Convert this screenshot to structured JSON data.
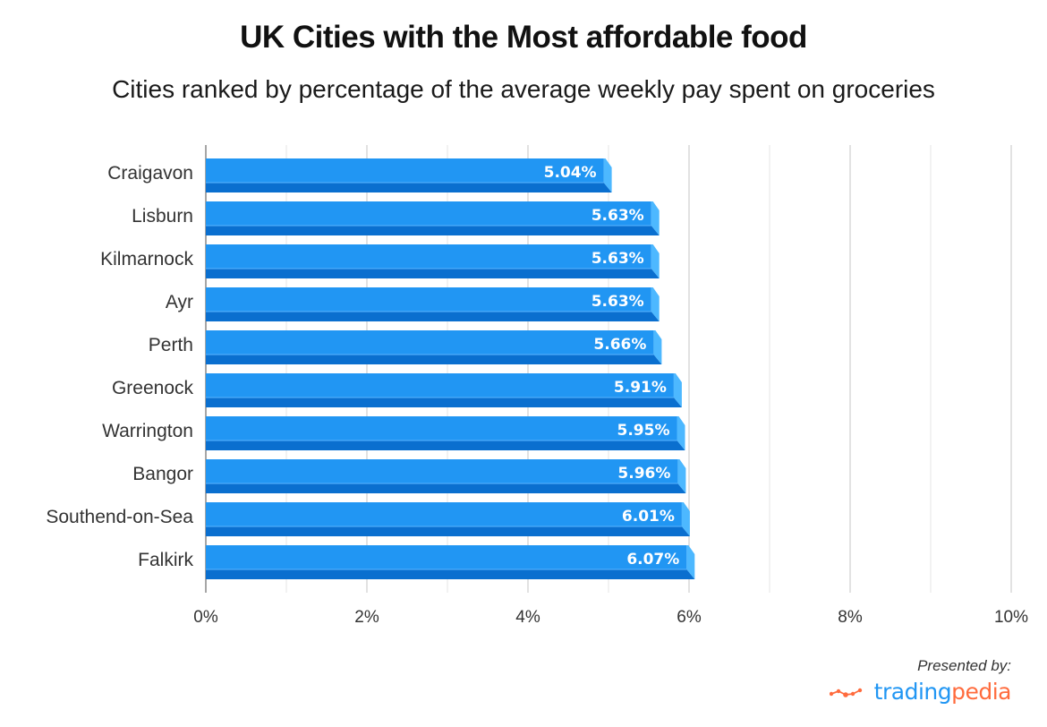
{
  "header": {
    "title": "UK Cities with the Most affordable food",
    "subtitle": "Cities ranked by percentage of the average weekly pay spent on groceries"
  },
  "footer": {
    "presented_by": "Presented by:",
    "brand_part1": "trading",
    "brand_part2": "pedia",
    "logo_icon": "line-chart-dots-icon"
  },
  "colors": {
    "bar_face": "#2196f3",
    "bar_bottom": "#0a6fcf",
    "bar_side": "#4db8ff",
    "grid": "#dddddd",
    "axis": "#888888",
    "brand_blue": "#2196f3",
    "brand_orange": "#ff6b3d"
  },
  "chart_data": {
    "type": "bar",
    "orientation": "horizontal",
    "title": "UK Cities with the Most affordable food",
    "subtitle": "Cities ranked by percentage of the average weekly pay spent on groceries",
    "xlabel": "",
    "ylabel": "",
    "categories": [
      "Craigavon",
      "Lisburn",
      "Kilmarnock",
      "Ayr",
      "Perth",
      "Greenock",
      "Warrington",
      "Bangor",
      "Southend-on-Sea",
      "Falkirk"
    ],
    "values": [
      5.04,
      5.63,
      5.63,
      5.63,
      5.66,
      5.91,
      5.95,
      5.96,
      6.01,
      6.07
    ],
    "value_labels": [
      "5.04%",
      "5.63%",
      "5.63%",
      "5.63%",
      "5.66%",
      "5.91%",
      "5.95%",
      "5.96%",
      "6.01%",
      "6.07%"
    ],
    "xlim": [
      0,
      10
    ],
    "x_ticks": [
      0,
      2,
      4,
      6,
      8,
      10
    ],
    "x_tick_labels": [
      "0%",
      "2%",
      "4%",
      "6%",
      "8%",
      "10%"
    ],
    "minor_grid_step": 1,
    "grid": true,
    "legend": "none"
  }
}
